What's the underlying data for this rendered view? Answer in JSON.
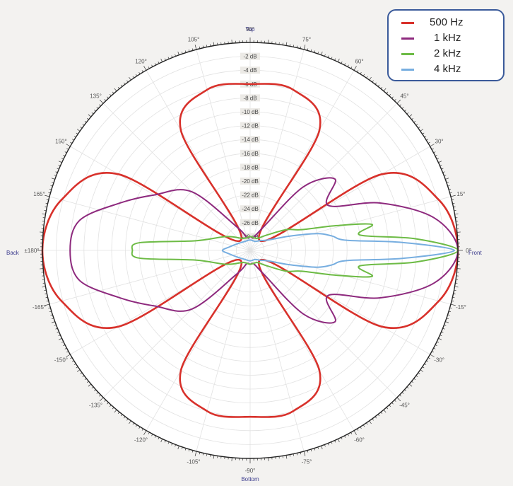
{
  "chart_data": {
    "type": "polar",
    "title": "",
    "angular_axis": {
      "unit": "degrees",
      "direction": "counterclockwise",
      "zero_position": "right",
      "tick_labels": [
        "0°",
        "15°",
        "30°",
        "45°",
        "60°",
        "75°",
        "90°",
        "105°",
        "120°",
        "135°",
        "150°",
        "165°",
        "±180°",
        "-165°",
        "-150°",
        "-135°",
        "-120°",
        "-105°",
        "-90°",
        "-75°",
        "-60°",
        "-45°",
        "-30°",
        "-15°"
      ],
      "tick_angles": [
        0,
        15,
        30,
        45,
        60,
        75,
        90,
        105,
        120,
        135,
        150,
        165,
        180,
        -165,
        -150,
        -135,
        -120,
        -105,
        -90,
        -75,
        -60,
        -45,
        -30,
        -15
      ]
    },
    "direction_labels": {
      "top": "Top",
      "bottom": "Bottom",
      "front": "Front",
      "back": "Back"
    },
    "radial_axis": {
      "unit": "dB",
      "range": [
        -30,
        0
      ],
      "tick_labels": [
        "-2 dB",
        "-4 dB",
        "-6 dB",
        "-8 dB",
        "-10 dB",
        "-12 dB",
        "-14 dB",
        "-16 dB",
        "-18 dB",
        "-20 dB",
        "-22 dB",
        "-24 dB",
        "-26 dB",
        "-28 dB"
      ],
      "tick_values": [
        -2,
        -4,
        -6,
        -8,
        -10,
        -12,
        -14,
        -16,
        -18,
        -20,
        -22,
        -24,
        -26,
        -28
      ]
    },
    "grid": true,
    "legend_position": "top-right",
    "series": [
      {
        "name": "500 Hz",
        "color": "#d8312b",
        "angles": [
          0,
          15,
          30,
          45,
          60,
          75,
          90,
          105,
          120,
          135,
          150,
          165,
          180,
          -165,
          -150,
          -135,
          -120,
          -105,
          -90,
          -75,
          -60,
          -45,
          -30,
          -15
        ],
        "values": [
          0,
          -1.8,
          -8,
          -28,
          -10,
          -6,
          -6,
          -6,
          -10,
          -28,
          -8,
          -1.8,
          0,
          -1.8,
          -8,
          -28,
          -10,
          -6,
          -6,
          -6,
          -10,
          -28,
          -8,
          -1.8
        ]
      },
      {
        "name": "1 kHz",
        "color": "#8e2a7e",
        "angles": [
          0,
          10,
          20,
          30,
          40,
          50,
          60,
          75,
          90,
          105,
          120,
          135,
          150,
          160,
          170,
          180,
          -170,
          -160,
          -150,
          -135,
          -120,
          -105,
          -90,
          -75,
          -60,
          -50,
          -40,
          -30,
          -20,
          -10
        ],
        "values": [
          0,
          -3,
          -10,
          -17,
          -14,
          -18,
          -26,
          -28,
          -28,
          -28,
          -26,
          -18,
          -14,
          -10,
          -5,
          -4,
          -5,
          -10,
          -14,
          -18,
          -26,
          -28,
          -28,
          -28,
          -26,
          -18,
          -14,
          -17,
          -10,
          -3
        ]
      },
      {
        "name": "2 kHz",
        "color": "#6dbb45",
        "angles": [
          0,
          4,
          8,
          12,
          16,
          22,
          30,
          45,
          60,
          90,
          120,
          150,
          170,
          176,
          180,
          -176,
          -170,
          -150,
          -120,
          -90,
          -60,
          -45,
          -30,
          -22,
          -16,
          -12,
          -8,
          -4
        ],
        "values": [
          0,
          -6,
          -14,
          -12,
          -17,
          -22,
          -24,
          -27,
          -28,
          -28,
          -28,
          -26,
          -22,
          -14,
          -13,
          -14,
          -22,
          -26,
          -28,
          -28,
          -28,
          -27,
          -24,
          -22,
          -17,
          -12,
          -14,
          -6
        ]
      },
      {
        "name": "4 kHz",
        "color": "#77aee0",
        "angles": [
          0,
          3,
          6,
          10,
          14,
          20,
          30,
          45,
          60,
          90,
          120,
          150,
          170,
          180,
          -170,
          -150,
          -120,
          -90,
          -60,
          -45,
          -30,
          -20,
          -14,
          -10,
          -6,
          -3
        ],
        "values": [
          -0.5,
          -8,
          -16,
          -18,
          -20,
          -24,
          -27,
          -28,
          -28.5,
          -28.5,
          -28.5,
          -28,
          -27,
          -26,
          -27,
          -28,
          -28.5,
          -28.5,
          -28.5,
          -28,
          -27,
          -24,
          -20,
          -18,
          -16,
          -8
        ]
      }
    ]
  },
  "legend": {
    "items": [
      {
        "label": "500 Hz",
        "color": "#d8312b"
      },
      {
        "label": "1 kHz",
        "color": "#8e2a7e"
      },
      {
        "label": "2 kHz",
        "color": "#6dbb45"
      },
      {
        "label": "4 kHz",
        "color": "#77aee0"
      }
    ]
  },
  "colors": {
    "background": "#f3f2f0",
    "plot_area": "#ffffff",
    "grid": "#e2e2e2",
    "outer_ring": "#222222",
    "legend_border": "#3a5a9a",
    "direction_label": "#3a3a8c"
  }
}
